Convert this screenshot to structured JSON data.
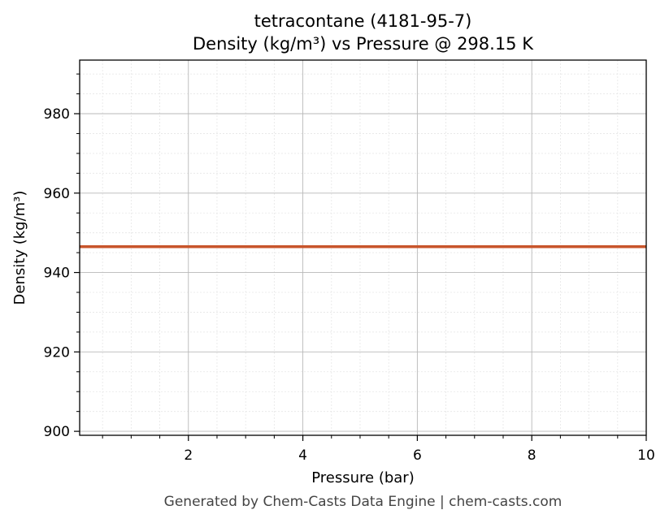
{
  "chart_data": {
    "type": "line",
    "title": "tetracontane (4181-95-7)",
    "subtitle": "Density (kg/m³) vs Pressure @ 298.15 K",
    "xlabel": "Pressure (bar)",
    "ylabel": "Density (kg/m³)",
    "xlim": [
      0.1,
      10
    ],
    "ylim": [
      899,
      993.5
    ],
    "xticks": [
      2,
      4,
      6,
      8,
      10
    ],
    "yticks": [
      900,
      920,
      940,
      960,
      980
    ],
    "grid": true,
    "minor_grid": true,
    "series": [
      {
        "color": "#c8552b",
        "x": [
          0.1,
          1,
          2,
          3,
          4,
          5,
          6,
          7,
          8,
          9,
          10
        ],
        "y": [
          946.5,
          946.5,
          946.5,
          946.5,
          946.5,
          946.5,
          946.5,
          946.5,
          946.5,
          946.5,
          946.5
        ]
      }
    ]
  },
  "footer": "Generated by Chem-Casts Data Engine | chem-casts.com"
}
